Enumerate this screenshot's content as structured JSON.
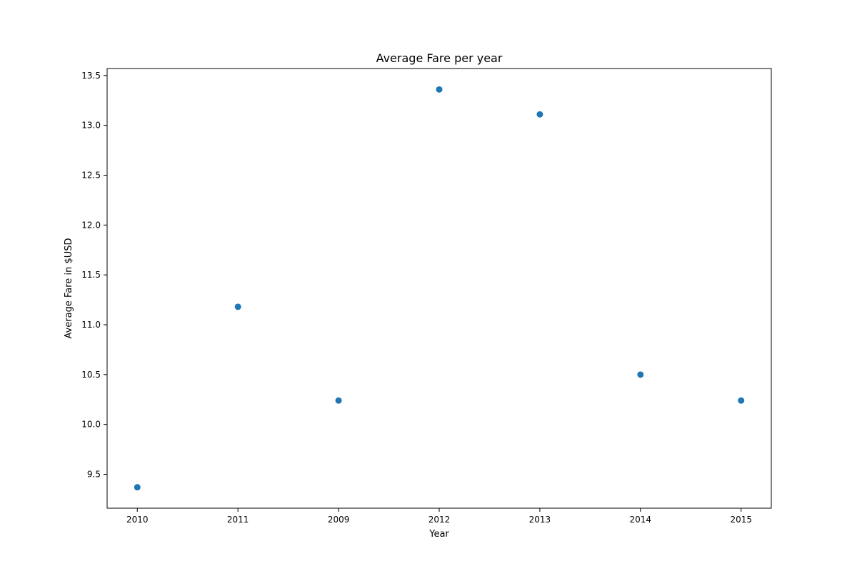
{
  "chart_data": {
    "type": "scatter",
    "title": "Average Fare per year",
    "xlabel": "Year",
    "ylabel": "Average Fare in $USD",
    "categories": [
      "2010",
      "2011",
      "2009",
      "2012",
      "2013",
      "2014",
      "2015"
    ],
    "values": [
      9.37,
      11.18,
      10.24,
      13.36,
      13.11,
      10.5,
      10.24
    ],
    "ylim": [
      9.16,
      13.57
    ],
    "yticks": [
      "9.5",
      "10.0",
      "10.5",
      "11.0",
      "11.5",
      "12.0",
      "12.5",
      "13.0",
      "13.5"
    ],
    "grid": false,
    "marker_color": "#1f77b4"
  }
}
